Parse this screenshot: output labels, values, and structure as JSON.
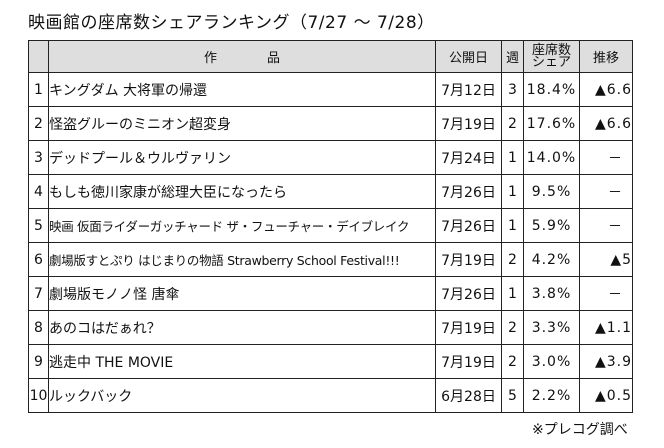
{
  "title": "映画館の座席数シェアランキング（7/27 ～ 7/28）",
  "headers": {
    "title": "作品",
    "release": "公開日",
    "weeks": "週",
    "share_line1": "座席数",
    "share_line2": "シェア",
    "trend": "推移"
  },
  "rows": [
    {
      "rank": "1",
      "title": "キングダム 大将軍の帰還",
      "release": "7月12日",
      "weeks": "3",
      "share": "18.4%",
      "trend": "▲6.6"
    },
    {
      "rank": "2",
      "title": "怪盗グルーのミニオン超変身",
      "release": "7月19日",
      "weeks": "2",
      "share": "17.6%",
      "trend": "▲6.6"
    },
    {
      "rank": "3",
      "title": "デッドプール＆ウルヴァリン",
      "release": "7月24日",
      "weeks": "1",
      "share": "14.0%",
      "trend": "－"
    },
    {
      "rank": "4",
      "title": "もしも徳川家康が総理大臣になったら",
      "release": "7月26日",
      "weeks": "1",
      "share": "9.5%",
      "trend": "－"
    },
    {
      "rank": "5",
      "title": "映画 仮面ライダーガッチャード ザ・フューチャー・デイブレイク",
      "release": "7月26日",
      "weeks": "1",
      "share": "5.9%",
      "trend": "－"
    },
    {
      "rank": "6",
      "title": "劇場版すとぷり はじまりの物語 Strawberry School Festival!!!",
      "release": "7月19日",
      "weeks": "2",
      "share": "4.2%",
      "trend": "▲5"
    },
    {
      "rank": "7",
      "title": "劇場版モノノ怪 唐傘",
      "release": "7月26日",
      "weeks": "1",
      "share": "3.8%",
      "trend": "－"
    },
    {
      "rank": "8",
      "title": "あのコはだぁれ？",
      "release": "7月19日",
      "weeks": "2",
      "share": "3.3%",
      "trend": "▲1.1"
    },
    {
      "rank": "9",
      "title": "逃走中 THE MOVIE",
      "release": "7月19日",
      "weeks": "2",
      "share": "3.0%",
      "trend": "▲3.9"
    },
    {
      "rank": "10",
      "title": "ルックバック",
      "release": "6月28日",
      "weeks": "5",
      "share": "2.2%",
      "trend": "▲0.5"
    }
  ],
  "source": "※プレコグ調べ"
}
